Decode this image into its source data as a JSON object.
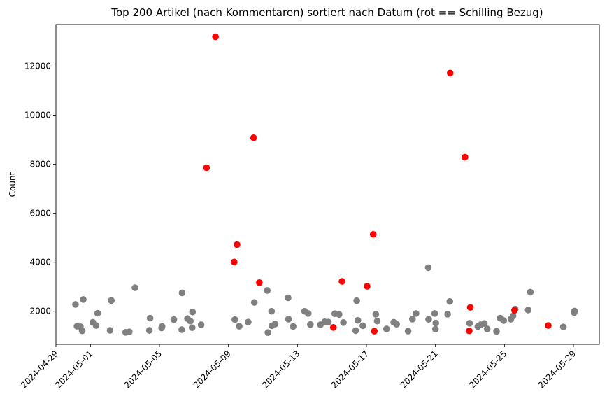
{
  "chart_data": {
    "type": "scatter",
    "title": "Top 200 Artikel (nach Kommentaren) sortiert nach Datum (rot == Schilling Bezug)",
    "xlabel": "",
    "ylabel": "Count",
    "x_type": "date",
    "xlim": [
      "2024-04-29T00:00",
      "2024-05-30T12:00"
    ],
    "ylim": [
      650,
      13700
    ],
    "x_ticks": [
      "2024-04-29",
      "2024-05-01",
      "2024-05-05",
      "2024-05-09",
      "2024-05-13",
      "2024-05-17",
      "2024-05-21",
      "2024-05-25",
      "2024-05-29"
    ],
    "y_ticks": [
      2000,
      4000,
      6000,
      8000,
      10000,
      12000
    ],
    "grid": false,
    "legend": "none",
    "colors": {
      "gray": "#808080",
      "red": "#ff0000"
    },
    "series": [
      {
        "color": "gray",
        "points": [
          [
            "2024-04-30T03:10",
            2280
          ],
          [
            "2024-04-30T05:20",
            1390
          ],
          [
            "2024-04-30T10:00",
            1370
          ],
          [
            "2024-04-30T14:00",
            2480
          ],
          [
            "2024-04-30T12:30",
            1200
          ],
          [
            "2024-05-01T03:20",
            1550
          ],
          [
            "2024-05-01T07:50",
            1420
          ],
          [
            "2024-05-01T10:00",
            1920
          ],
          [
            "2024-05-02T03:20",
            1220
          ],
          [
            "2024-05-02T05:00",
            2440
          ],
          [
            "2024-05-03T01:00",
            1140
          ],
          [
            "2024-05-03T06:00",
            1160
          ],
          [
            "2024-05-03T14:00",
            2960
          ],
          [
            "2024-05-04T10:00",
            1220
          ],
          [
            "2024-05-04T11:00",
            1720
          ],
          [
            "2024-05-05T03:00",
            1320
          ],
          [
            "2024-05-05T03:40",
            1380
          ],
          [
            "2024-05-05T20:00",
            1660
          ],
          [
            "2024-05-06T07:00",
            1250
          ],
          [
            "2024-05-06T07:30",
            2750
          ],
          [
            "2024-05-06T15:00",
            1700
          ],
          [
            "2024-05-06T19:00",
            1600
          ],
          [
            "2024-05-06T21:30",
            1330
          ],
          [
            "2024-05-06T22:00",
            1970
          ],
          [
            "2024-05-07T10:00",
            1450
          ],
          [
            "2024-05-09T09:00",
            1660
          ],
          [
            "2024-05-09T15:00",
            1390
          ],
          [
            "2024-05-10T03:30",
            1560
          ],
          [
            "2024-05-10T12:00",
            2360
          ],
          [
            "2024-05-11T06:00",
            2850
          ],
          [
            "2024-05-11T07:00",
            1130
          ],
          [
            "2024-05-11T12:00",
            2000
          ],
          [
            "2024-05-11T12:30",
            1410
          ],
          [
            "2024-05-11T17:00",
            1480
          ],
          [
            "2024-05-12T11:00",
            2550
          ],
          [
            "2024-05-12T11:30",
            1680
          ],
          [
            "2024-05-12T18:00",
            1380
          ],
          [
            "2024-05-13T10:00",
            2000
          ],
          [
            "2024-05-13T15:00",
            1910
          ],
          [
            "2024-05-13T18:00",
            1460
          ],
          [
            "2024-05-14T08:00",
            1450
          ],
          [
            "2024-05-14T14:00",
            1570
          ],
          [
            "2024-05-14T19:00",
            1560
          ],
          [
            "2024-05-15T04:00",
            1900
          ],
          [
            "2024-05-15T10:00",
            1870
          ],
          [
            "2024-05-15T16:00",
            1540
          ],
          [
            "2024-05-16T09:00",
            1210
          ],
          [
            "2024-05-16T10:30",
            2430
          ],
          [
            "2024-05-16T12:00",
            1630
          ],
          [
            "2024-05-16T19:00",
            1410
          ],
          [
            "2024-05-17T13:00",
            1880
          ],
          [
            "2024-05-17T15:00",
            1600
          ],
          [
            "2024-05-18T04:00",
            1280
          ],
          [
            "2024-05-18T14:00",
            1550
          ],
          [
            "2024-05-18T18:00",
            1470
          ],
          [
            "2024-05-19T10:00",
            1190
          ],
          [
            "2024-05-19T16:00",
            1680
          ],
          [
            "2024-05-19T21:00",
            1910
          ],
          [
            "2024-05-20T14:00",
            3780
          ],
          [
            "2024-05-20T14:30",
            1670
          ],
          [
            "2024-05-20T23:00",
            1910
          ],
          [
            "2024-05-21T00:00",
            1270
          ],
          [
            "2024-05-21T00:30",
            1520
          ],
          [
            "2024-05-21T17:00",
            1880
          ],
          [
            "2024-05-21T20:00",
            2400
          ],
          [
            "2024-05-22T23:30",
            1510
          ],
          [
            "2024-05-23T11:00",
            1380
          ],
          [
            "2024-05-23T15:00",
            1450
          ],
          [
            "2024-05-23T20:00",
            1500
          ],
          [
            "2024-05-24T00:00",
            1280
          ],
          [
            "2024-05-24T13:00",
            1180
          ],
          [
            "2024-05-24T18:00",
            1720
          ],
          [
            "2024-05-24T23:00",
            1620
          ],
          [
            "2024-05-25T09:00",
            1680
          ],
          [
            "2024-05-25T12:00",
            1810
          ],
          [
            "2024-05-25T15:00",
            2090
          ],
          [
            "2024-05-26T09:00",
            2050
          ],
          [
            "2024-05-26T12:00",
            2780
          ],
          [
            "2024-05-28T10:00",
            1360
          ],
          [
            "2024-05-29T01:00",
            1950
          ],
          [
            "2024-05-29T01:30",
            2010
          ]
        ]
      },
      {
        "color": "red",
        "points": [
          [
            "2024-05-07T17:30",
            7860
          ],
          [
            "2024-05-08T06:00",
            13200
          ],
          [
            "2024-05-09T08:00",
            4010
          ],
          [
            "2024-05-09T12:00",
            4720
          ],
          [
            "2024-05-10T11:00",
            9080
          ],
          [
            "2024-05-10T19:00",
            3170
          ],
          [
            "2024-05-15T02:00",
            1340
          ],
          [
            "2024-05-15T14:00",
            3220
          ],
          [
            "2024-05-17T01:00",
            3020
          ],
          [
            "2024-05-17T09:30",
            5140
          ],
          [
            "2024-05-17T11:00",
            1190
          ],
          [
            "2024-05-21T20:30",
            11720
          ],
          [
            "2024-05-22T17:00",
            8290
          ],
          [
            "2024-05-22T23:00",
            1200
          ],
          [
            "2024-05-23T00:30",
            2160
          ],
          [
            "2024-05-25T14:00",
            2040
          ],
          [
            "2024-05-27T13:00",
            1420
          ]
        ]
      }
    ]
  }
}
